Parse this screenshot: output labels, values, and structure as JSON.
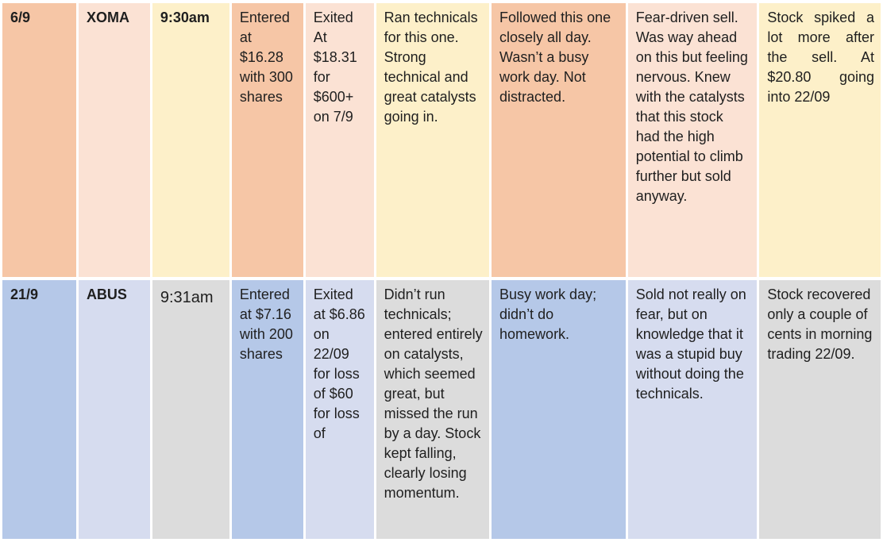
{
  "rows": [
    {
      "date": "6/9",
      "ticker": "XOMA",
      "time": "9:30am",
      "entry": "Entered at $16.28 with 300 shares",
      "exit": "Exited At $18.31 for $600+ on 7/9",
      "analysis": "Ran technicals for this one. Strong technical and great catalysts going in.",
      "attention": "Followed this one closely all day. Wasn’t a busy work day. Not distracted.",
      "reason": "Fear-driven sell. Was way ahead on this but feeling nervous. Knew with the catalysts that this stock had the high potential to climb further but sold anyway.",
      "outcome": "Stock spiked a lot more after the sell. At $20.80 going into 22/09"
    },
    {
      "date": "21/9",
      "ticker": "ABUS",
      "time": "9:31am",
      "entry": "Entered at $7.16 with 200 shares",
      "exit": "Exited at $6.86 on 22/09 for loss of $60 for loss of",
      "analysis": "Didn’t run technicals; entered entirely on catalysts, which seemed great, but missed the run by a day. Stock kept falling, clearly losing momentum.",
      "attention": "Busy work day; didn’t do homework.",
      "reason": "Sold not really on fear, but on knowledge that it was a stupid buy without doing the technicals.",
      "outcome": "Stock recovered only a couple of cents in morning trading 22/09."
    }
  ]
}
